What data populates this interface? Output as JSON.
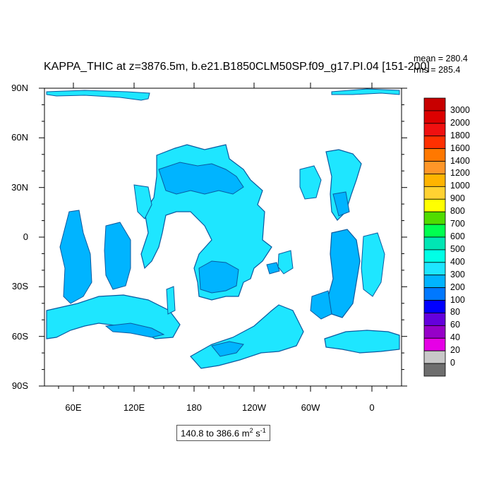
{
  "title": "KAPPA_THIC at z=3876.5m, b.e21.B1850CLM50SP.f09_g17.PI.04 [151-200]",
  "stats": {
    "mean": "mean = 280.4",
    "rms": "rms = 285.4"
  },
  "range_label": {
    "text": "140.8 to 386.6 m",
    "unit_sup1": "2",
    "unit_mid": " s",
    "unit_sup2": "-1"
  },
  "y_ticks": [
    "90N",
    "60N",
    "30N",
    "0",
    "30S",
    "60S",
    "90S"
  ],
  "x_ticks": [
    "60E",
    "120E",
    "180",
    "120W",
    "60W",
    "0"
  ],
  "colorbar": {
    "labels": [
      "3000",
      "2000",
      "1800",
      "1600",
      "1400",
      "1200",
      "1000",
      "900",
      "800",
      "700",
      "600",
      "500",
      "400",
      "300",
      "200",
      "100",
      "80",
      "60",
      "40",
      "20",
      "0"
    ],
    "colors": [
      "#c80000",
      "#dc0000",
      "#f01010",
      "#ff3000",
      "#ff7800",
      "#ff9628",
      "#ffb400",
      "#ffd232",
      "#ffff00",
      "#50dc00",
      "#00ff50",
      "#00e6b4",
      "#00ffe6",
      "#1ee6ff",
      "#00b4ff",
      "#0078ff",
      "#0000ff",
      "#6400dc",
      "#9600c8",
      "#e600e6",
      "#c8c8c8",
      "#6e6e6e"
    ]
  }
}
